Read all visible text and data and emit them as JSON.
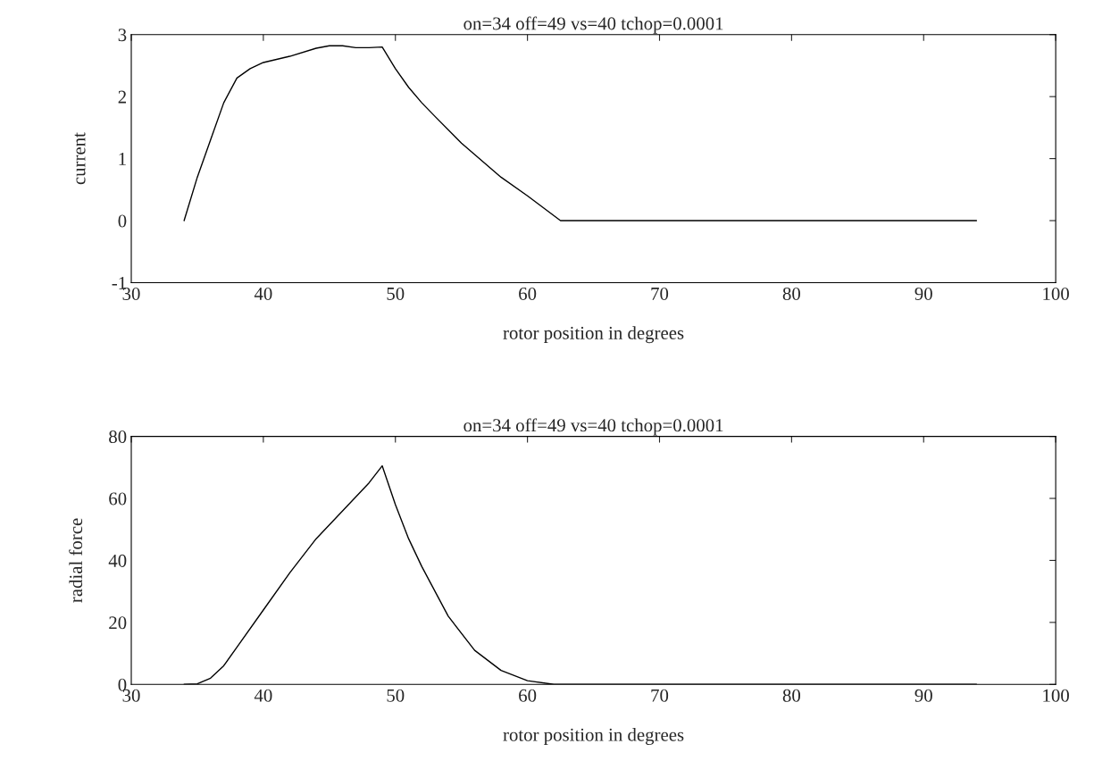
{
  "chart_data": [
    {
      "type": "line",
      "title": "on=34 off=49 vs=40 tchop=0.0001",
      "xlabel": "rotor position in degrees",
      "ylabel": "current",
      "xlim": [
        30,
        100
      ],
      "xticks": [
        30,
        40,
        50,
        60,
        70,
        80,
        90,
        100
      ],
      "ylim": [
        -1,
        3
      ],
      "yticks": [
        -1,
        0,
        1,
        2,
        3
      ],
      "grid": false,
      "legend": false,
      "series": [
        {
          "color": "#000000",
          "x": [
            34,
            35,
            36,
            37,
            38,
            39,
            40,
            42,
            44,
            45,
            46,
            47,
            48,
            49,
            50,
            51,
            52,
            53,
            55,
            58,
            60,
            62.5,
            70,
            80,
            94
          ],
          "values": [
            0,
            0.7,
            1.3,
            1.9,
            2.3,
            2.45,
            2.55,
            2.65,
            2.78,
            2.82,
            2.82,
            2.79,
            2.79,
            2.8,
            2.45,
            2.15,
            1.9,
            1.68,
            1.25,
            0.7,
            0.4,
            0,
            0,
            0,
            0
          ]
        }
      ]
    },
    {
      "type": "line",
      "title": "on=34 off=49 vs=40 tchop=0.0001",
      "xlabel": "rotor position in degrees",
      "ylabel": "radial force",
      "xlim": [
        30,
        100
      ],
      "xticks": [
        30,
        40,
        50,
        60,
        70,
        80,
        90,
        100
      ],
      "ylim": [
        0,
        80
      ],
      "yticks": [
        0,
        20,
        40,
        60,
        80
      ],
      "grid": false,
      "legend": false,
      "series": [
        {
          "color": "#000000",
          "x": [
            34,
            35,
            36,
            37,
            38,
            40,
            42,
            44,
            46,
            48,
            49,
            50,
            51,
            52,
            54,
            56,
            58,
            60,
            62,
            70,
            80,
            94
          ],
          "values": [
            0,
            0.2,
            2,
            6,
            12,
            24,
            36,
            47,
            56,
            65,
            70.5,
            58,
            47,
            38,
            22,
            11,
            4.5,
            1.2,
            0,
            0,
            0,
            0
          ]
        }
      ]
    }
  ]
}
